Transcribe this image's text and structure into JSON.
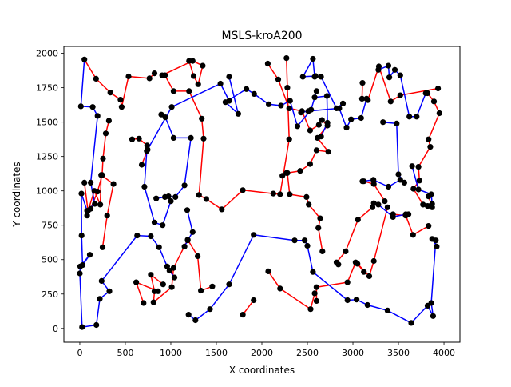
{
  "chart_data": {
    "type": "line",
    "title": "MSLS-kroA200",
    "xlabel": "X coordinates",
    "ylabel": "Y coordinates",
    "xlim": [
      -175,
      4175
    ],
    "ylim": [
      -100,
      2050
    ],
    "xticks": [
      0,
      500,
      1000,
      1500,
      2000,
      2500,
      3000,
      3500,
      4000
    ],
    "yticks": [
      0,
      250,
      500,
      750,
      1000,
      1250,
      1500,
      1750,
      2000
    ],
    "grid": false,
    "colors": {
      "red": "#ff0000",
      "blue": "#0000ff",
      "point": "#000000"
    },
    "series": [
      {
        "color": "red",
        "paths": [
          [
            [
              50,
              1955
            ],
            [
              178,
              1815
            ],
            [
              335,
              1715
            ],
            [
              447,
              1663
            ],
            [
              460,
              1610
            ],
            [
              535,
              1832
            ],
            [
              765,
              1818
            ],
            [
              820,
              1855
            ]
          ],
          [
            [
              905,
              1840
            ],
            [
              1240,
              1945
            ],
            [
              1350,
              1910
            ],
            [
              1300,
              1775
            ],
            [
              1250,
              1835
            ],
            [
              1200,
              1945
            ]
          ],
          [
            [
              320,
              1510
            ],
            [
              285,
              1418
            ],
            [
              255,
              1235
            ],
            [
              245,
              1115
            ],
            [
              195,
              995
            ],
            [
              120,
              870
            ],
            [
              80,
              820
            ]
          ],
          [
            [
              575,
              1375
            ],
            [
              650,
              1380
            ],
            [
              740,
              1330
            ],
            [
              745,
              1300
            ],
            [
              680,
              1190
            ]
          ],
          [
            [
              935,
              1840
            ],
            [
              1030,
              1725
            ],
            [
              1200,
              1725
            ],
            [
              1340,
              1525
            ],
            [
              1360,
              1380
            ],
            [
              1310,
              970
            ],
            [
              1390,
              940
            ],
            [
              1560,
              865
            ],
            [
              1790,
              1005
            ],
            [
              2125,
              980
            ],
            [
              2200,
              975
            ],
            [
              2300,
              1375
            ],
            [
              2280,
              1750
            ],
            [
              2270,
              1965
            ]
          ],
          [
            [
              2065,
              1925
            ],
            [
              2180,
              1810
            ],
            [
              2300,
              1600
            ],
            [
              2440,
              1580
            ],
            [
              2530,
              1440
            ],
            [
              2625,
              1480
            ],
            [
              2660,
              1515
            ],
            [
              2720,
              1475
            ],
            [
              2610,
              1385
            ],
            [
              2730,
              1285
            ],
            [
              2600,
              1295
            ],
            [
              2530,
              1195
            ],
            [
              2420,
              1145
            ],
            [
              2280,
              1130
            ],
            [
              2305,
              975
            ],
            [
              2490,
              955
            ],
            [
              2515,
              900
            ],
            [
              2640,
              800
            ],
            [
              2620,
              730
            ],
            [
              2665,
              560
            ]
          ],
          [
            [
              3105,
              1785
            ],
            [
              3100,
              1670
            ],
            [
              3165,
              1660
            ],
            [
              3285,
              1905
            ],
            [
              3415,
              1650
            ],
            [
              3520,
              1695
            ],
            [
              3935,
              1745
            ]
          ],
          [
            [
              3820,
              1710
            ],
            [
              3890,
              1650
            ],
            [
              3950,
              1565
            ],
            [
              3830,
              1375
            ],
            [
              3850,
              1320
            ],
            [
              3720,
              1175
            ],
            [
              3730,
              1075
            ],
            [
              3665,
              1015
            ],
            [
              3770,
              900
            ],
            [
              3850,
              890
            ],
            [
              3870,
              880
            ],
            [
              3830,
              960
            ]
          ],
          [
            [
              3440,
              830
            ],
            [
              3580,
              820
            ],
            [
              3660,
              680
            ],
            [
              3830,
              745
            ]
          ],
          [
            [
              3215,
              880
            ],
            [
              3055,
              790
            ],
            [
              2920,
              560
            ],
            [
              2820,
              480
            ],
            [
              2840,
              465
            ]
          ],
          [
            [
              3120,
              1070
            ],
            [
              3230,
              1050
            ],
            [
              3350,
              925
            ]
          ],
          [
            [
              2270,
              1130
            ],
            [
              2225,
              1110
            ]
          ],
          [
            [
              3120,
              410
            ],
            [
              3050,
              470
            ],
            [
              3180,
              380
            ],
            [
              3230,
              490
            ],
            [
              3380,
              880
            ]
          ],
          [
            [
              2600,
              200
            ],
            [
              2600,
              300
            ],
            [
              2940,
              335
            ],
            [
              3030,
              480
            ]
          ],
          [
            [
              2070,
              415
            ],
            [
              2200,
              290
            ],
            [
              2535,
              140
            ],
            [
              2580,
              255
            ]
          ],
          [
            [
              1790,
              100
            ],
            [
              1910,
              205
            ]
          ],
          [
            [
              1455,
              305
            ],
            [
              1330,
              275
            ],
            [
              1295,
              525
            ],
            [
              1185,
              645
            ],
            [
              1030,
              440
            ],
            [
              1010,
              300
            ],
            [
              810,
              190
            ],
            [
              820,
              270
            ],
            [
              780,
              390
            ],
            [
              915,
              320
            ]
          ],
          [
            [
              700,
              185
            ],
            [
              620,
              335
            ],
            [
              860,
              270
            ]
          ],
          [
            [
              250,
              590
            ],
            [
              300,
              820
            ],
            [
              370,
              1050
            ],
            [
              235,
              1115
            ],
            [
              225,
              900
            ],
            [
              160,
              1000
            ],
            [
              90,
              855
            ],
            [
              50,
              1060
            ]
          ]
        ]
      },
      {
        "color": "blue",
        "paths": [
          [
            [
              50,
              1955
            ],
            [
              12,
              1615
            ],
            [
              142,
              1610
            ],
            [
              195,
              1545
            ],
            [
              120,
              1060
            ],
            [
              165,
              905
            ],
            [
              80,
              855
            ],
            [
              18,
              980
            ],
            [
              20,
              675
            ],
            [
              30,
              460
            ],
            [
              110,
              535
            ],
            [
              5,
              450
            ],
            [
              0,
              400
            ],
            [
              25,
              10
            ],
            [
              182,
              25
            ],
            [
              220,
              215
            ],
            [
              325,
              270
            ],
            [
              240,
              345
            ],
            [
              630,
              675
            ],
            [
              780,
              670
            ],
            [
              870,
              590
            ],
            [
              960,
              450
            ],
            [
              985,
              420
            ],
            [
              1040,
              370
            ]
          ],
          [
            [
              895,
              1555
            ],
            [
              940,
              1535
            ],
            [
              1030,
              1385
            ],
            [
              1220,
              1385
            ],
            [
              1150,
              1040
            ],
            [
              1050,
              955
            ],
            [
              975,
              960
            ],
            [
              1000,
              925
            ],
            [
              910,
              750
            ],
            [
              820,
              770
            ],
            [
              710,
              1030
            ],
            [
              735,
              1290
            ],
            [
              1010,
              1610
            ],
            [
              1545,
              1780
            ],
            [
              1640,
              1655
            ]
          ],
          [
            [
              1640,
              1830
            ],
            [
              1740,
              1560
            ],
            [
              1600,
              1645
            ],
            [
              1830,
              1740
            ],
            [
              1915,
              1705
            ],
            [
              2075,
              1630
            ],
            [
              2210,
              1620
            ],
            [
              2310,
              1655
            ],
            [
              2390,
              1470
            ],
            [
              2540,
              1590
            ],
            [
              2600,
              1725
            ],
            [
              2580,
              1680
            ],
            [
              2715,
              1690
            ],
            [
              2720,
              1495
            ],
            [
              2650,
              1395
            ]
          ],
          [
            [
              1150,
              595
            ],
            [
              1185,
              640
            ],
            [
              1240,
              700
            ],
            [
              1180,
              860
            ]
          ],
          [
            [
              840,
              945
            ],
            [
              935,
              955
            ]
          ],
          [
            [
              1195,
              100
            ],
            [
              1270,
              60
            ],
            [
              1430,
              140
            ],
            [
              1640,
              320
            ],
            [
              1910,
              680
            ],
            [
              2360,
              640
            ],
            [
              2470,
              640
            ],
            [
              2500,
              600
            ],
            [
              2560,
              410
            ],
            [
              2940,
              205
            ],
            [
              3040,
              210
            ],
            [
              3160,
              170
            ],
            [
              3380,
              130
            ],
            [
              3640,
              40
            ],
            [
              3820,
              165
            ],
            [
              3880,
              90
            ],
            [
              3860,
              185
            ],
            [
              3910,
              640
            ],
            [
              3870,
              650
            ],
            [
              3920,
              595
            ]
          ],
          [
            [
              2580,
              1830
            ],
            [
              2560,
              1960
            ],
            [
              2450,
              1830
            ],
            [
              2590,
              1835
            ],
            [
              2650,
              1830
            ],
            [
              2820,
              1600
            ],
            [
              2890,
              1635
            ]
          ],
          [
            [
              2430,
              1570
            ],
            [
              2510,
              1580
            ],
            [
              2850,
              1600
            ],
            [
              2930,
              1460
            ],
            [
              2980,
              1520
            ],
            [
              3090,
              1530
            ],
            [
              3150,
              1670
            ]
          ],
          [
            [
              3280,
              1880
            ],
            [
              3390,
              1910
            ],
            [
              3400,
              1825
            ],
            [
              3460,
              1880
            ],
            [
              3520,
              1840
            ],
            [
              3620,
              1540
            ],
            [
              3700,
              1540
            ],
            [
              3800,
              1710
            ]
          ],
          [
            [
              3330,
              1500
            ],
            [
              3480,
              1490
            ],
            [
              3500,
              1120
            ],
            [
              3565,
              1060
            ],
            [
              3520,
              1080
            ],
            [
              3390,
              1030
            ],
            [
              3225,
              1080
            ],
            [
              3105,
              1070
            ]
          ],
          [
            [
              3650,
              1180
            ],
            [
              3720,
              1010
            ],
            [
              3860,
              975
            ],
            [
              3870,
              905
            ],
            [
              3820,
              890
            ]
          ],
          [
            [
              3230,
              910
            ],
            [
              3280,
              900
            ],
            [
              3440,
              810
            ],
            [
              3580,
              830
            ],
            [
              3610,
              830
            ]
          ]
        ]
      }
    ]
  }
}
